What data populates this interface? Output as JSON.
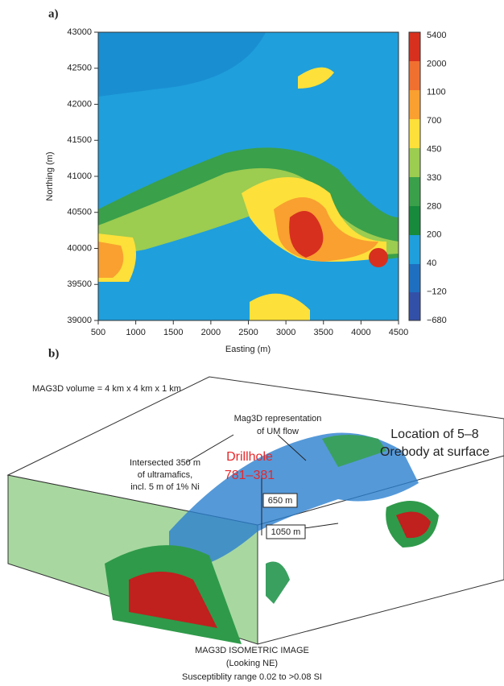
{
  "panel_a": {
    "label": "a)",
    "x_axis_title": "Easting (m)",
    "y_axis_title": "Northing (m)",
    "x_ticks": [
      "500",
      "1000",
      "1500",
      "2000",
      "2500",
      "3000",
      "3500",
      "4000",
      "4500"
    ],
    "y_ticks": [
      "43000",
      "42500",
      "42000",
      "41500",
      "41000",
      "40500",
      "40000",
      "39500",
      "39000"
    ],
    "colorbar_labels": [
      "5400",
      "2000",
      "1100",
      "700",
      "450",
      "330",
      "280",
      "200",
      "40",
      "−120",
      "−680"
    ]
  },
  "panel_b": {
    "label": "b)",
    "volume_note": "MAG3D volume = 4 km x 4 km x 1 km",
    "um_flow": [
      "Mag3D representation",
      "of UM flow"
    ],
    "orebody": [
      "Location of 5–8",
      "Orebody at surface"
    ],
    "drillhole": [
      "Drillhole",
      "781–381"
    ],
    "intersection": [
      "Intersected 350 m",
      "of ultramafics,",
      "incl. 5 m of 1% Ni"
    ],
    "depth_labels": [
      "650 m",
      "1050 m"
    ],
    "caption": [
      "MAG3D ISOMETRIC IMAGE",
      "(Looking NE)",
      "Susceptiblity range 0.02 to >0.08 SI"
    ]
  }
}
